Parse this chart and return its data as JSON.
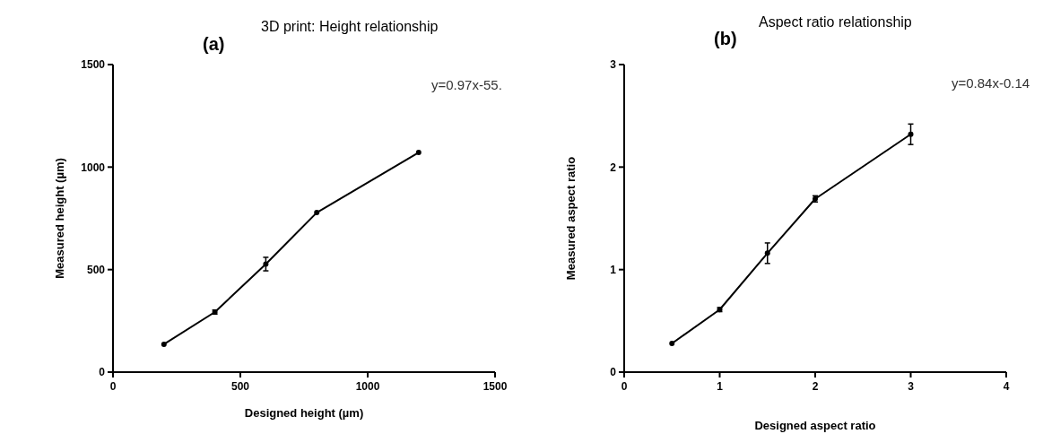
{
  "chart_data": [
    {
      "type": "line",
      "title": "3D print: Height relationship",
      "xlabel": "Designed height (µm)",
      "ylabel": "Measured height (µm)",
      "annotations": [
        "(a)",
        "y=0.97x-55."
      ],
      "x": [
        200,
        400,
        600,
        800,
        1200
      ],
      "series": [
        {
          "color": "#000000",
          "values": [
            136,
            293,
            527,
            778,
            1071
          ],
          "errors": [
            null,
            10,
            33,
            null,
            null
          ]
        }
      ],
      "xlim": [
        0,
        1500
      ],
      "xticks": [
        0,
        500,
        1000,
        1500
      ],
      "ylim": [
        0,
        1500
      ],
      "yticks": [
        0,
        500,
        1000,
        1500
      ],
      "grid": false,
      "marker": "circle",
      "line_style": "solid"
    },
    {
      "type": "line",
      "title": "Aspect ratio relationship",
      "xlabel": "Designed aspect ratio",
      "ylabel": "Measured aspect ratio",
      "annotations": [
        "(b)",
        "y=0.84x-0.14"
      ],
      "x": [
        0.5,
        1,
        1.5,
        2,
        2.5,
        3
      ],
      "series": [
        {
          "color": "#000000",
          "values": [
            0.28,
            0.61,
            1.16,
            1.69,
            null,
            2.32
          ],
          "errors": [
            null,
            0.02,
            0.1,
            0.03,
            null,
            0.1
          ]
        }
      ],
      "xlim": [
        0,
        4
      ],
      "xticks": [
        0,
        1,
        2,
        3,
        4
      ],
      "ylim": [
        0,
        3
      ],
      "yticks": [
        0,
        1,
        2,
        3
      ],
      "grid": false,
      "marker": "circle",
      "line_style": "solid"
    }
  ]
}
